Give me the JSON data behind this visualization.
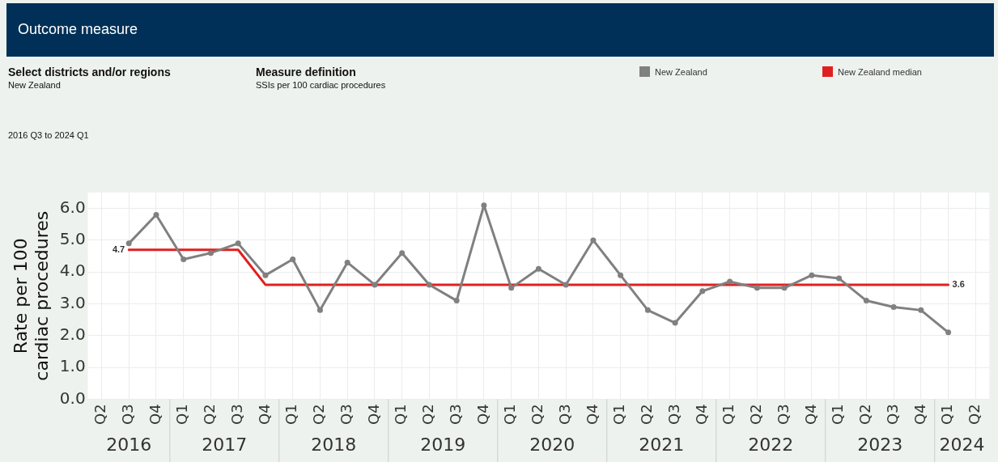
{
  "chart_data": {
    "type": "line",
    "title": "Outcome measure",
    "ylabel": "Rate per 100 cardiac procedures",
    "categories": [
      "Q2",
      "Q3",
      "Q4",
      "Q1",
      "Q2",
      "Q3",
      "Q4",
      "Q1",
      "Q2",
      "Q3",
      "Q4",
      "Q1",
      "Q2",
      "Q3",
      "Q4",
      "Q1",
      "Q2",
      "Q3",
      "Q4",
      "Q1",
      "Q2",
      "Q3",
      "Q4",
      "Q1",
      "Q2",
      "Q3",
      "Q4",
      "Q1",
      "Q2",
      "Q3",
      "Q4",
      "Q1",
      "Q2"
    ],
    "series": [
      {
        "name": "New Zealand",
        "color": "#808080",
        "marker": "circle",
        "values": [
          null,
          4.9,
          5.8,
          4.4,
          4.6,
          4.9,
          3.9,
          4.4,
          2.8,
          4.3,
          3.6,
          4.6,
          3.6,
          3.1,
          6.1,
          3.5,
          4.1,
          3.6,
          5.0,
          3.9,
          2.8,
          2.4,
          3.4,
          3.7,
          3.5,
          3.5,
          3.9,
          3.8,
          3.1,
          2.9,
          2.8,
          2.1,
          null
        ]
      },
      {
        "name": "New Zealand median",
        "color": "#e02020",
        "marker": "none",
        "values": [
          null,
          4.7,
          4.7,
          4.7,
          4.7,
          4.7,
          3.6,
          3.6,
          3.6,
          3.6,
          3.6,
          3.6,
          3.6,
          3.6,
          3.6,
          3.6,
          3.6,
          3.6,
          3.6,
          3.6,
          3.6,
          3.6,
          3.6,
          3.6,
          3.6,
          3.6,
          3.6,
          3.6,
          3.6,
          3.6,
          3.6,
          3.6,
          null
        ],
        "value_labels": [
          null,
          "4.7",
          null,
          null,
          null,
          null,
          null,
          null,
          null,
          null,
          null,
          null,
          null,
          null,
          null,
          null,
          null,
          null,
          null,
          null,
          null,
          null,
          null,
          null,
          null,
          null,
          null,
          null,
          null,
          null,
          null,
          "3.6",
          null
        ]
      }
    ],
    "ylim": [
      0,
      6.5
    ],
    "yticks": [
      {
        "value": 0,
        "label": "0.0"
      },
      {
        "value": 1,
        "label": "1.0"
      },
      {
        "value": 2,
        "label": "2.0"
      },
      {
        "value": 3,
        "label": "3.0"
      },
      {
        "value": 4,
        "label": "4.0"
      },
      {
        "value": 5,
        "label": "5.0"
      },
      {
        "value": 6,
        "label": "6.0"
      }
    ],
    "grid": true,
    "legend": "top right",
    "line_style": "solid",
    "annotations": [
      "Select districts and/or regions",
      "New Zealand",
      "Measure definition",
      "SSIs per 100 cardiac procedures",
      "2016 Q3 to 2024 Q1",
      "2016",
      "2017",
      "2018",
      "2019",
      "2020",
      "2021",
      "2022",
      "2023",
      "2024"
    ]
  }
}
